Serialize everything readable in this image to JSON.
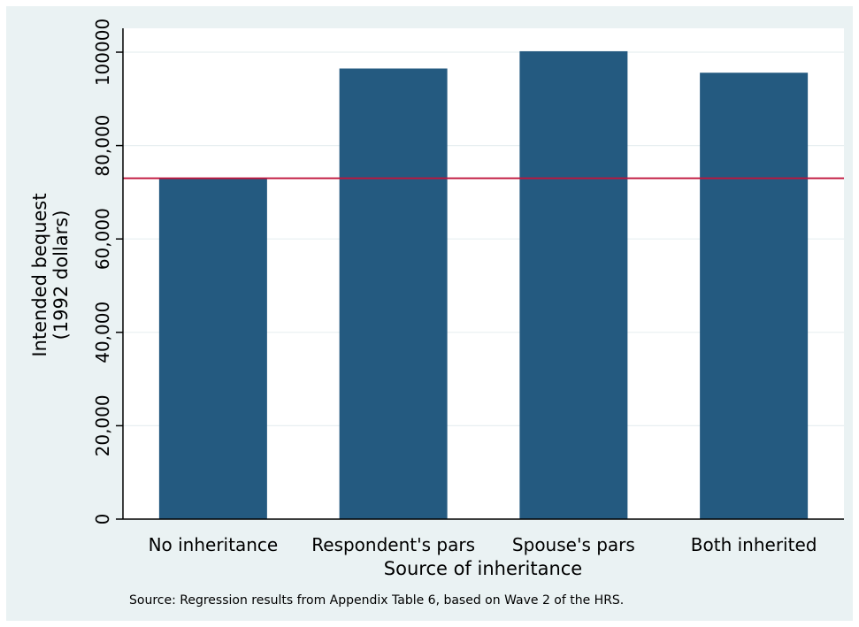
{
  "chart_data": {
    "type": "bar",
    "categories": [
      "No inheritance",
      "Respondent's pars",
      "Spouse's pars",
      "Both inherited"
    ],
    "values": [
      73000,
      96500,
      100200,
      95600
    ],
    "xlabel": "Source of inheritance",
    "ylabel_line1": "Intended bequest",
    "ylabel_line2": "(1992 dollars)",
    "ylim": [
      0,
      100000
    ],
    "yticks": [
      0,
      20000,
      40000,
      60000,
      80000,
      100000
    ],
    "ytick_labels": [
      "0",
      "20,000",
      "40,000",
      "60,000",
      "80,000",
      "100000"
    ],
    "reference_line": 73000,
    "bar_color": "#245a80",
    "reference_color": "#c0143c",
    "grid": true,
    "note": "Source: Regression results from Appendix Table 6, based on Wave 2 of the HRS."
  }
}
